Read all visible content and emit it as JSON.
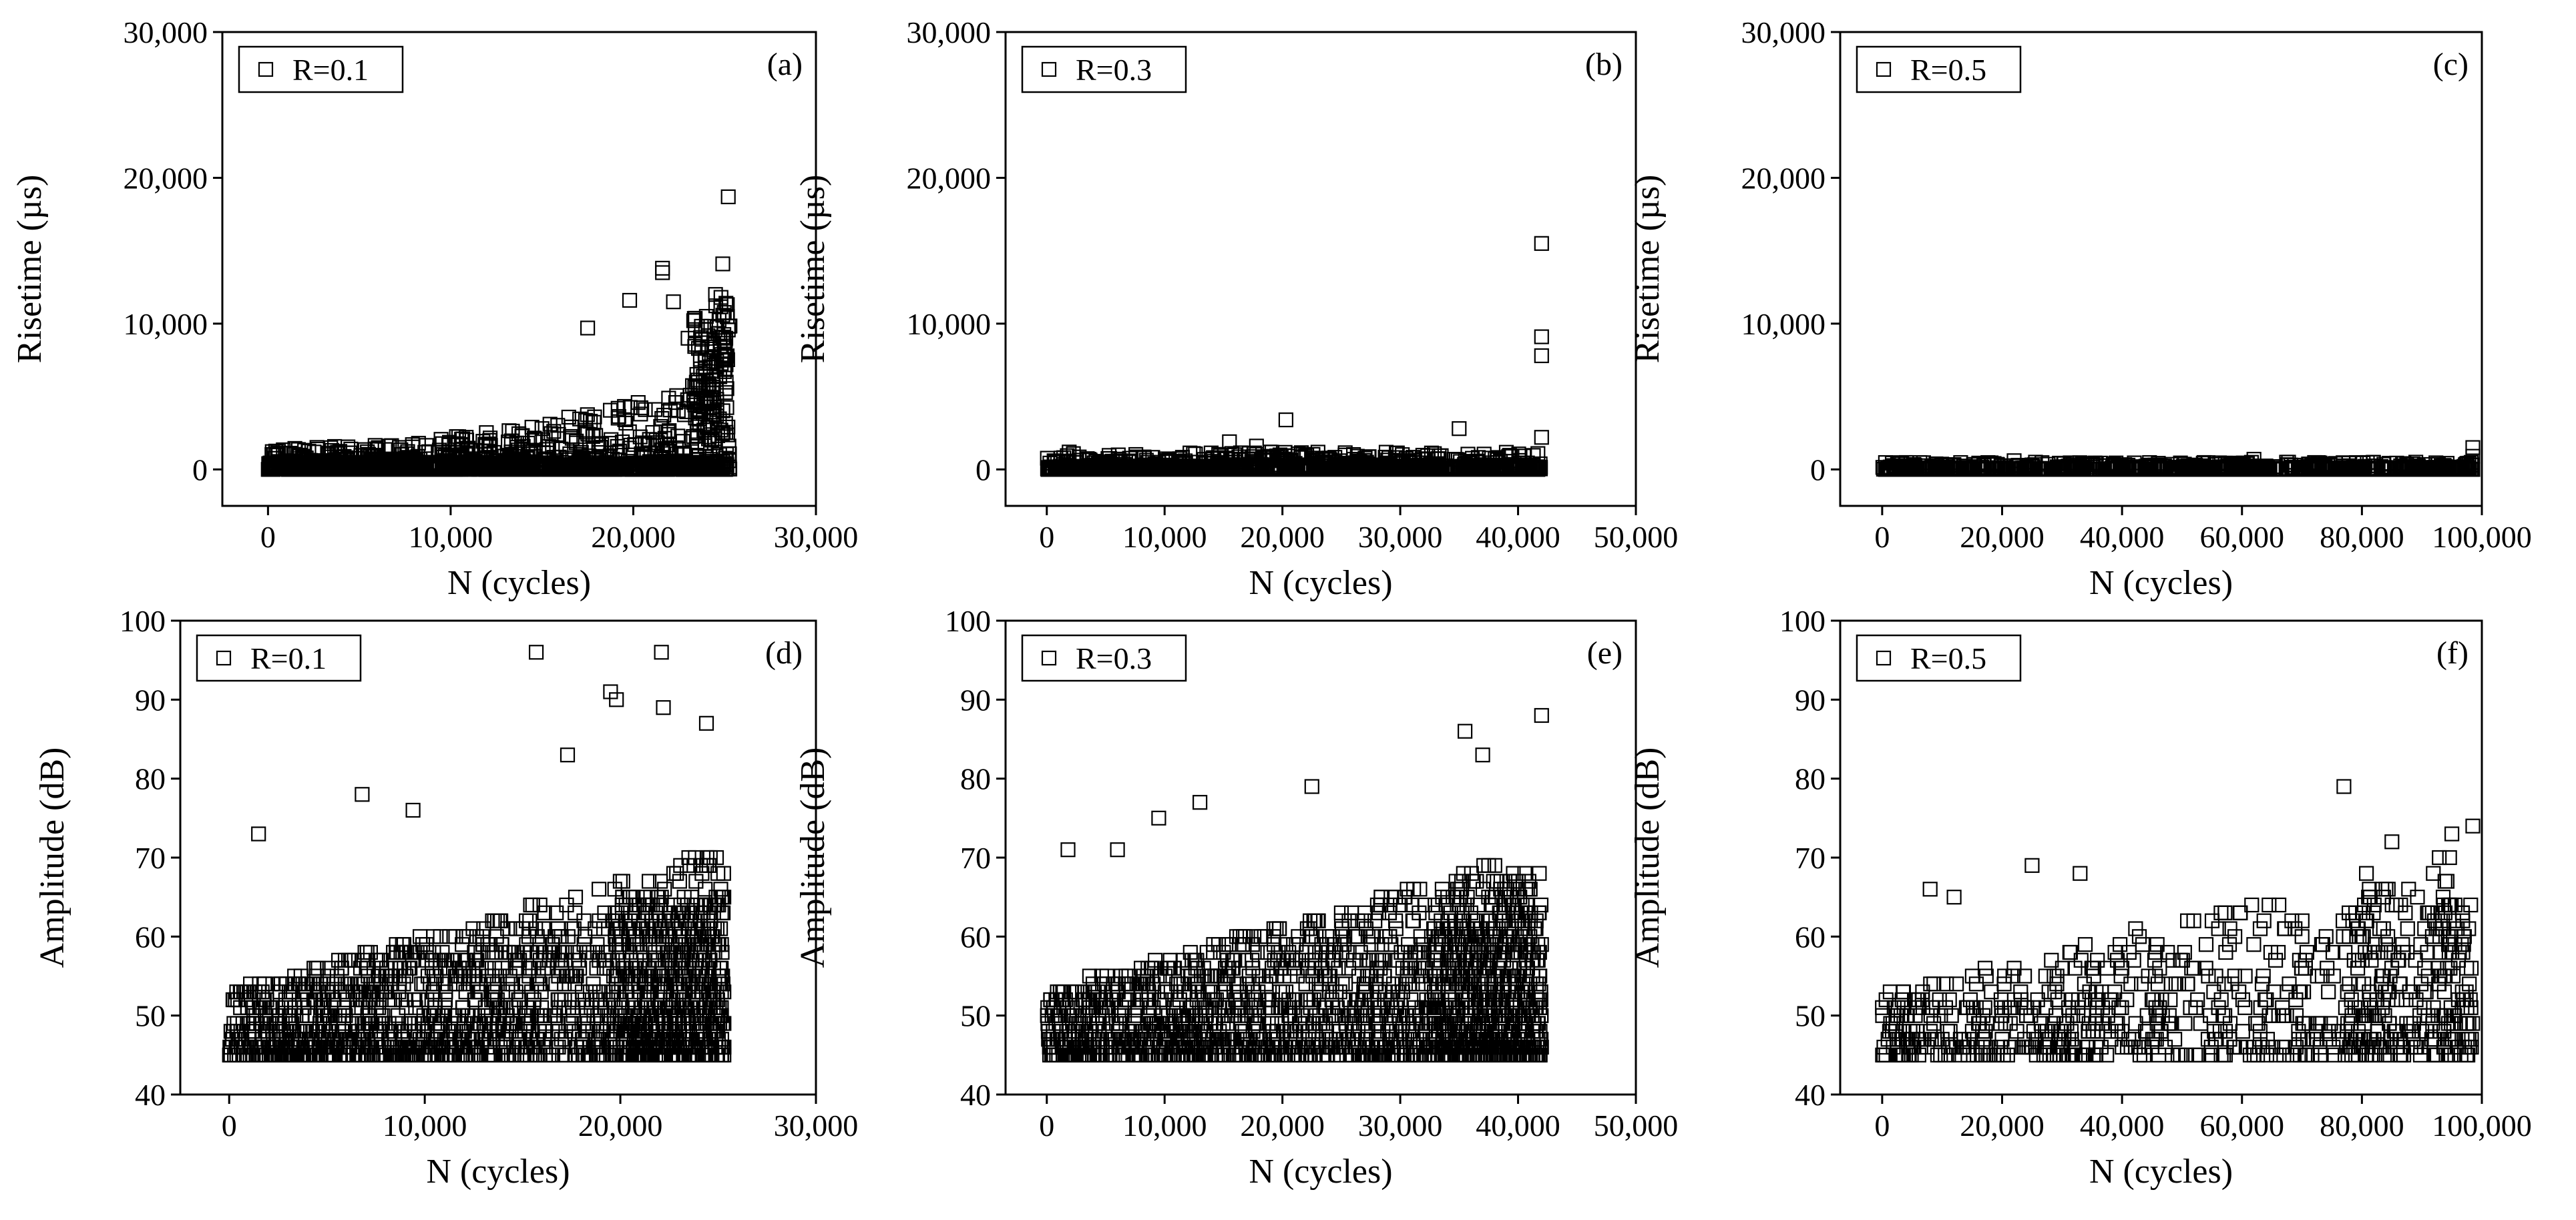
{
  "figure": {
    "panels": [
      "a",
      "b",
      "c",
      "d",
      "e",
      "f"
    ]
  },
  "chart_data": [
    {
      "id": "a",
      "type": "scatter",
      "panel_label": "(a)",
      "legend": "R=0.1",
      "xlabel": "N (cycles)",
      "ylabel": "Risetime (µs)",
      "xlim": [
        -2500,
        30000
      ],
      "ylim": [
        -2500,
        30000
      ],
      "xticks": [
        0,
        10000,
        20000,
        30000
      ],
      "xtick_labels": [
        "0",
        "10,000",
        "20,000",
        "30,000"
      ],
      "yticks": [
        0,
        10000,
        20000,
        30000
      ],
      "ytick_labels": [
        "0",
        "10,000",
        "20,000",
        "30,000"
      ],
      "x_max_data": 25300,
      "gen": "rise",
      "peaks": [
        [
          21600,
          13800
        ],
        [
          21600,
          13500
        ],
        [
          24900,
          14100
        ],
        [
          25200,
          18700
        ],
        [
          24500,
          12000
        ],
        [
          22200,
          11500
        ],
        [
          17500,
          9700
        ],
        [
          24800,
          11800
        ],
        [
          19800,
          11600
        ],
        [
          23000,
          9000
        ],
        [
          24000,
          10500
        ]
      ],
      "seed": 11
    },
    {
      "id": "b",
      "type": "scatter",
      "panel_label": "(b)",
      "legend": "R=0.3",
      "xlabel": "N (cycles)",
      "ylabel": "Risetime (µs)",
      "xlim": [
        -3500,
        50000
      ],
      "ylim": [
        -2500,
        30000
      ],
      "xticks": [
        0,
        10000,
        20000,
        30000,
        40000,
        50000
      ],
      "xtick_labels": [
        "0",
        "10,000",
        "20,000",
        "30,000",
        "40,000",
        "50,000"
      ],
      "yticks": [
        0,
        10000,
        20000,
        30000
      ],
      "ytick_labels": [
        "0",
        "10,000",
        "20,000",
        "30,000"
      ],
      "x_max_data": 42000,
      "gen": "rise_low",
      "peaks": [
        [
          42000,
          15500
        ],
        [
          42000,
          9100
        ],
        [
          42000,
          7800
        ],
        [
          20300,
          3400
        ],
        [
          35000,
          2800
        ],
        [
          42000,
          2200
        ],
        [
          15500,
          1900
        ],
        [
          17800,
          1600
        ]
      ],
      "seed": 22
    },
    {
      "id": "c",
      "type": "scatter",
      "panel_label": "(c)",
      "legend": "R=0.5",
      "xlabel": "N (cycles)",
      "ylabel": "Risetime (µs)",
      "xlim": [
        -7000,
        100000
      ],
      "ylim": [
        -2500,
        30000
      ],
      "xticks": [
        0,
        20000,
        40000,
        60000,
        80000,
        100000
      ],
      "xtick_labels": [
        "0",
        "20,000",
        "40,000",
        "60,000",
        "80,000",
        "100,000"
      ],
      "yticks": [
        0,
        10000,
        20000,
        30000
      ],
      "ytick_labels": [
        "0",
        "10,000",
        "20,000",
        "30,000"
      ],
      "x_max_data": 98500,
      "gen": "rise_flat",
      "peaks": [
        [
          98500,
          1500
        ],
        [
          98500,
          900
        ],
        [
          62000,
          700
        ],
        [
          22000,
          600
        ]
      ],
      "seed": 33
    },
    {
      "id": "d",
      "type": "scatter",
      "panel_label": "(d)",
      "legend": "R=0.1",
      "xlabel": "N (cycles)",
      "ylabel": "Amplitude (dB)",
      "xlim": [
        -2500,
        30000
      ],
      "ylim": [
        40,
        100
      ],
      "xticks": [
        0,
        10000,
        20000,
        30000
      ],
      "xtick_labels": [
        "0",
        "10,000",
        "20,000",
        "30,000"
      ],
      "yticks": [
        40,
        50,
        60,
        70,
        80,
        90,
        100
      ],
      "ytick_labels": [
        "40",
        "50",
        "60",
        "70",
        "80",
        "90",
        "100"
      ],
      "x_max_data": 25300,
      "gen": "amp",
      "peaks": [
        [
          15700,
          96
        ],
        [
          22100,
          96
        ],
        [
          19500,
          91
        ],
        [
          19800,
          90
        ],
        [
          22200,
          89
        ],
        [
          24400,
          87
        ],
        [
          17300,
          83
        ],
        [
          6800,
          78
        ],
        [
          9400,
          76
        ],
        [
          1500,
          73
        ]
      ],
      "seed": 44
    },
    {
      "id": "e",
      "type": "scatter",
      "panel_label": "(e)",
      "legend": "R=0.3",
      "xlabel": "N (cycles)",
      "ylabel": "Amplitude (dB)",
      "xlim": [
        -3500,
        50000
      ],
      "ylim": [
        40,
        100
      ],
      "xticks": [
        0,
        10000,
        20000,
        30000,
        40000,
        50000
      ],
      "xtick_labels": [
        "0",
        "10,000",
        "20,000",
        "30,000",
        "40,000",
        "50,000"
      ],
      "yticks": [
        40,
        50,
        60,
        70,
        80,
        90,
        100
      ],
      "ytick_labels": [
        "40",
        "50",
        "60",
        "70",
        "80",
        "90",
        "100"
      ],
      "x_max_data": 42000,
      "gen": "amp",
      "peaks": [
        [
          42000,
          88
        ],
        [
          35500,
          86
        ],
        [
          37000,
          83
        ],
        [
          22500,
          79
        ],
        [
          13000,
          77
        ],
        [
          9500,
          75
        ],
        [
          1800,
          71
        ],
        [
          6000,
          71
        ]
      ],
      "seed": 55
    },
    {
      "id": "f",
      "type": "scatter",
      "panel_label": "(f)",
      "legend": "R=0.5",
      "xlabel": "N (cycles)",
      "ylabel": "Amplitude (dB)",
      "xlim": [
        -7000,
        100000
      ],
      "ylim": [
        40,
        100
      ],
      "xticks": [
        0,
        20000,
        40000,
        60000,
        80000,
        100000
      ],
      "xtick_labels": [
        "0",
        "20,000",
        "40,000",
        "60,000",
        "80,000",
        "100,000"
      ],
      "yticks": [
        40,
        50,
        60,
        70,
        80,
        90,
        100
      ],
      "ytick_labels": [
        "40",
        "50",
        "60",
        "70",
        "80",
        "90",
        "100"
      ],
      "x_max_data": 98500,
      "gen": "amp_sparse",
      "peaks": [
        [
          77000,
          79
        ],
        [
          98500,
          74
        ],
        [
          95000,
          73
        ],
        [
          85000,
          72
        ],
        [
          25000,
          69
        ],
        [
          33000,
          68
        ],
        [
          8000,
          66
        ],
        [
          12000,
          65
        ]
      ],
      "seed": 66
    }
  ]
}
